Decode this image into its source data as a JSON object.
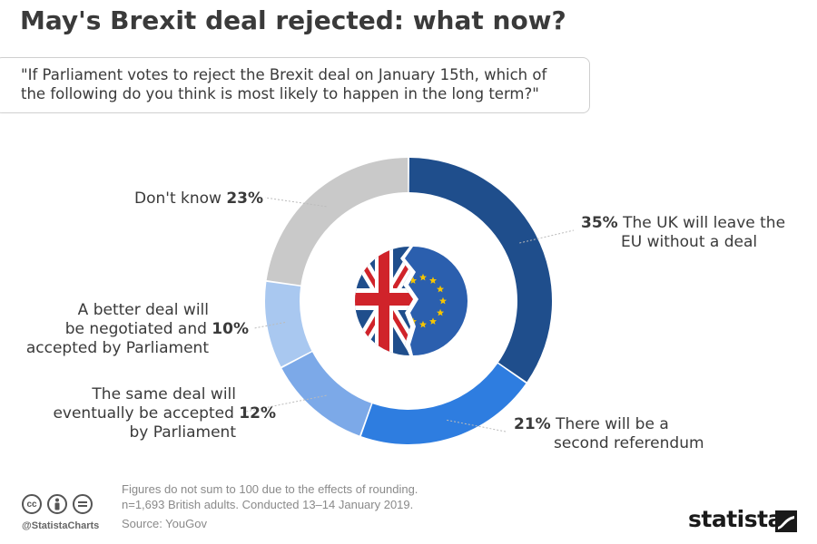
{
  "title": "May's Brexit deal rejected: what now?",
  "question": {
    "line1": "\"If Parliament votes to reject the Brexit deal on January 15th, which of",
    "line2": "the following do you think is most likely to happen in the long term?\""
  },
  "chart_data": {
    "type": "pie",
    "subtype": "donut",
    "title": "May's Brexit deal rejected: what now?",
    "slices": [
      {
        "label": "The UK will leave the EU without a deal",
        "value": 35,
        "color": "#1f4e8c"
      },
      {
        "label": "There will be a second referendum",
        "value": 21,
        "color": "#2e7de0"
      },
      {
        "label": "The same deal will eventually be accepted by Parliament",
        "value": 12,
        "color": "#7ca9e8"
      },
      {
        "label": "A better deal will be negotiated and accepted by Parliament",
        "value": 10,
        "color": "#a9c8f0"
      },
      {
        "label": "Don't know",
        "value": 23,
        "color": "#c9c9c9"
      }
    ]
  },
  "labels": {
    "no_deal": {
      "pct": "35%",
      "line1": "The UK will leave the",
      "line2": "EU without a deal"
    },
    "referendum": {
      "pct": "21%",
      "line1": "There will be a",
      "line2": "second referendum"
    },
    "same_deal": {
      "pct": "12%",
      "line1": "The same deal will",
      "line2a": "eventually be accepted",
      "line3": "by Parliament"
    },
    "better_deal": {
      "pct": "10%",
      "line1": "A better deal will",
      "line2a": "be negotiated and",
      "line3": "accepted by Parliament"
    },
    "dont_know": {
      "text": "Don't know",
      "pct": "23%"
    }
  },
  "footnote": {
    "line1": "Figures do not sum to 100 due to the effects of rounding.",
    "line2": "n=1,693 British adults. Conducted 13–14 January 2019.",
    "source": "Source: YouGov"
  },
  "footer": {
    "handle": "@StatistaCharts",
    "brand": "statista",
    "license_icons": [
      "cc-icon",
      "by-icon",
      "nd-icon"
    ]
  },
  "colors": {
    "leader": "#bbbbbb",
    "flag_blue": "#1f4e8c",
    "flag_red": "#d0232a",
    "eu_blue": "#2b5fae",
    "eu_star": "#f5c400"
  }
}
